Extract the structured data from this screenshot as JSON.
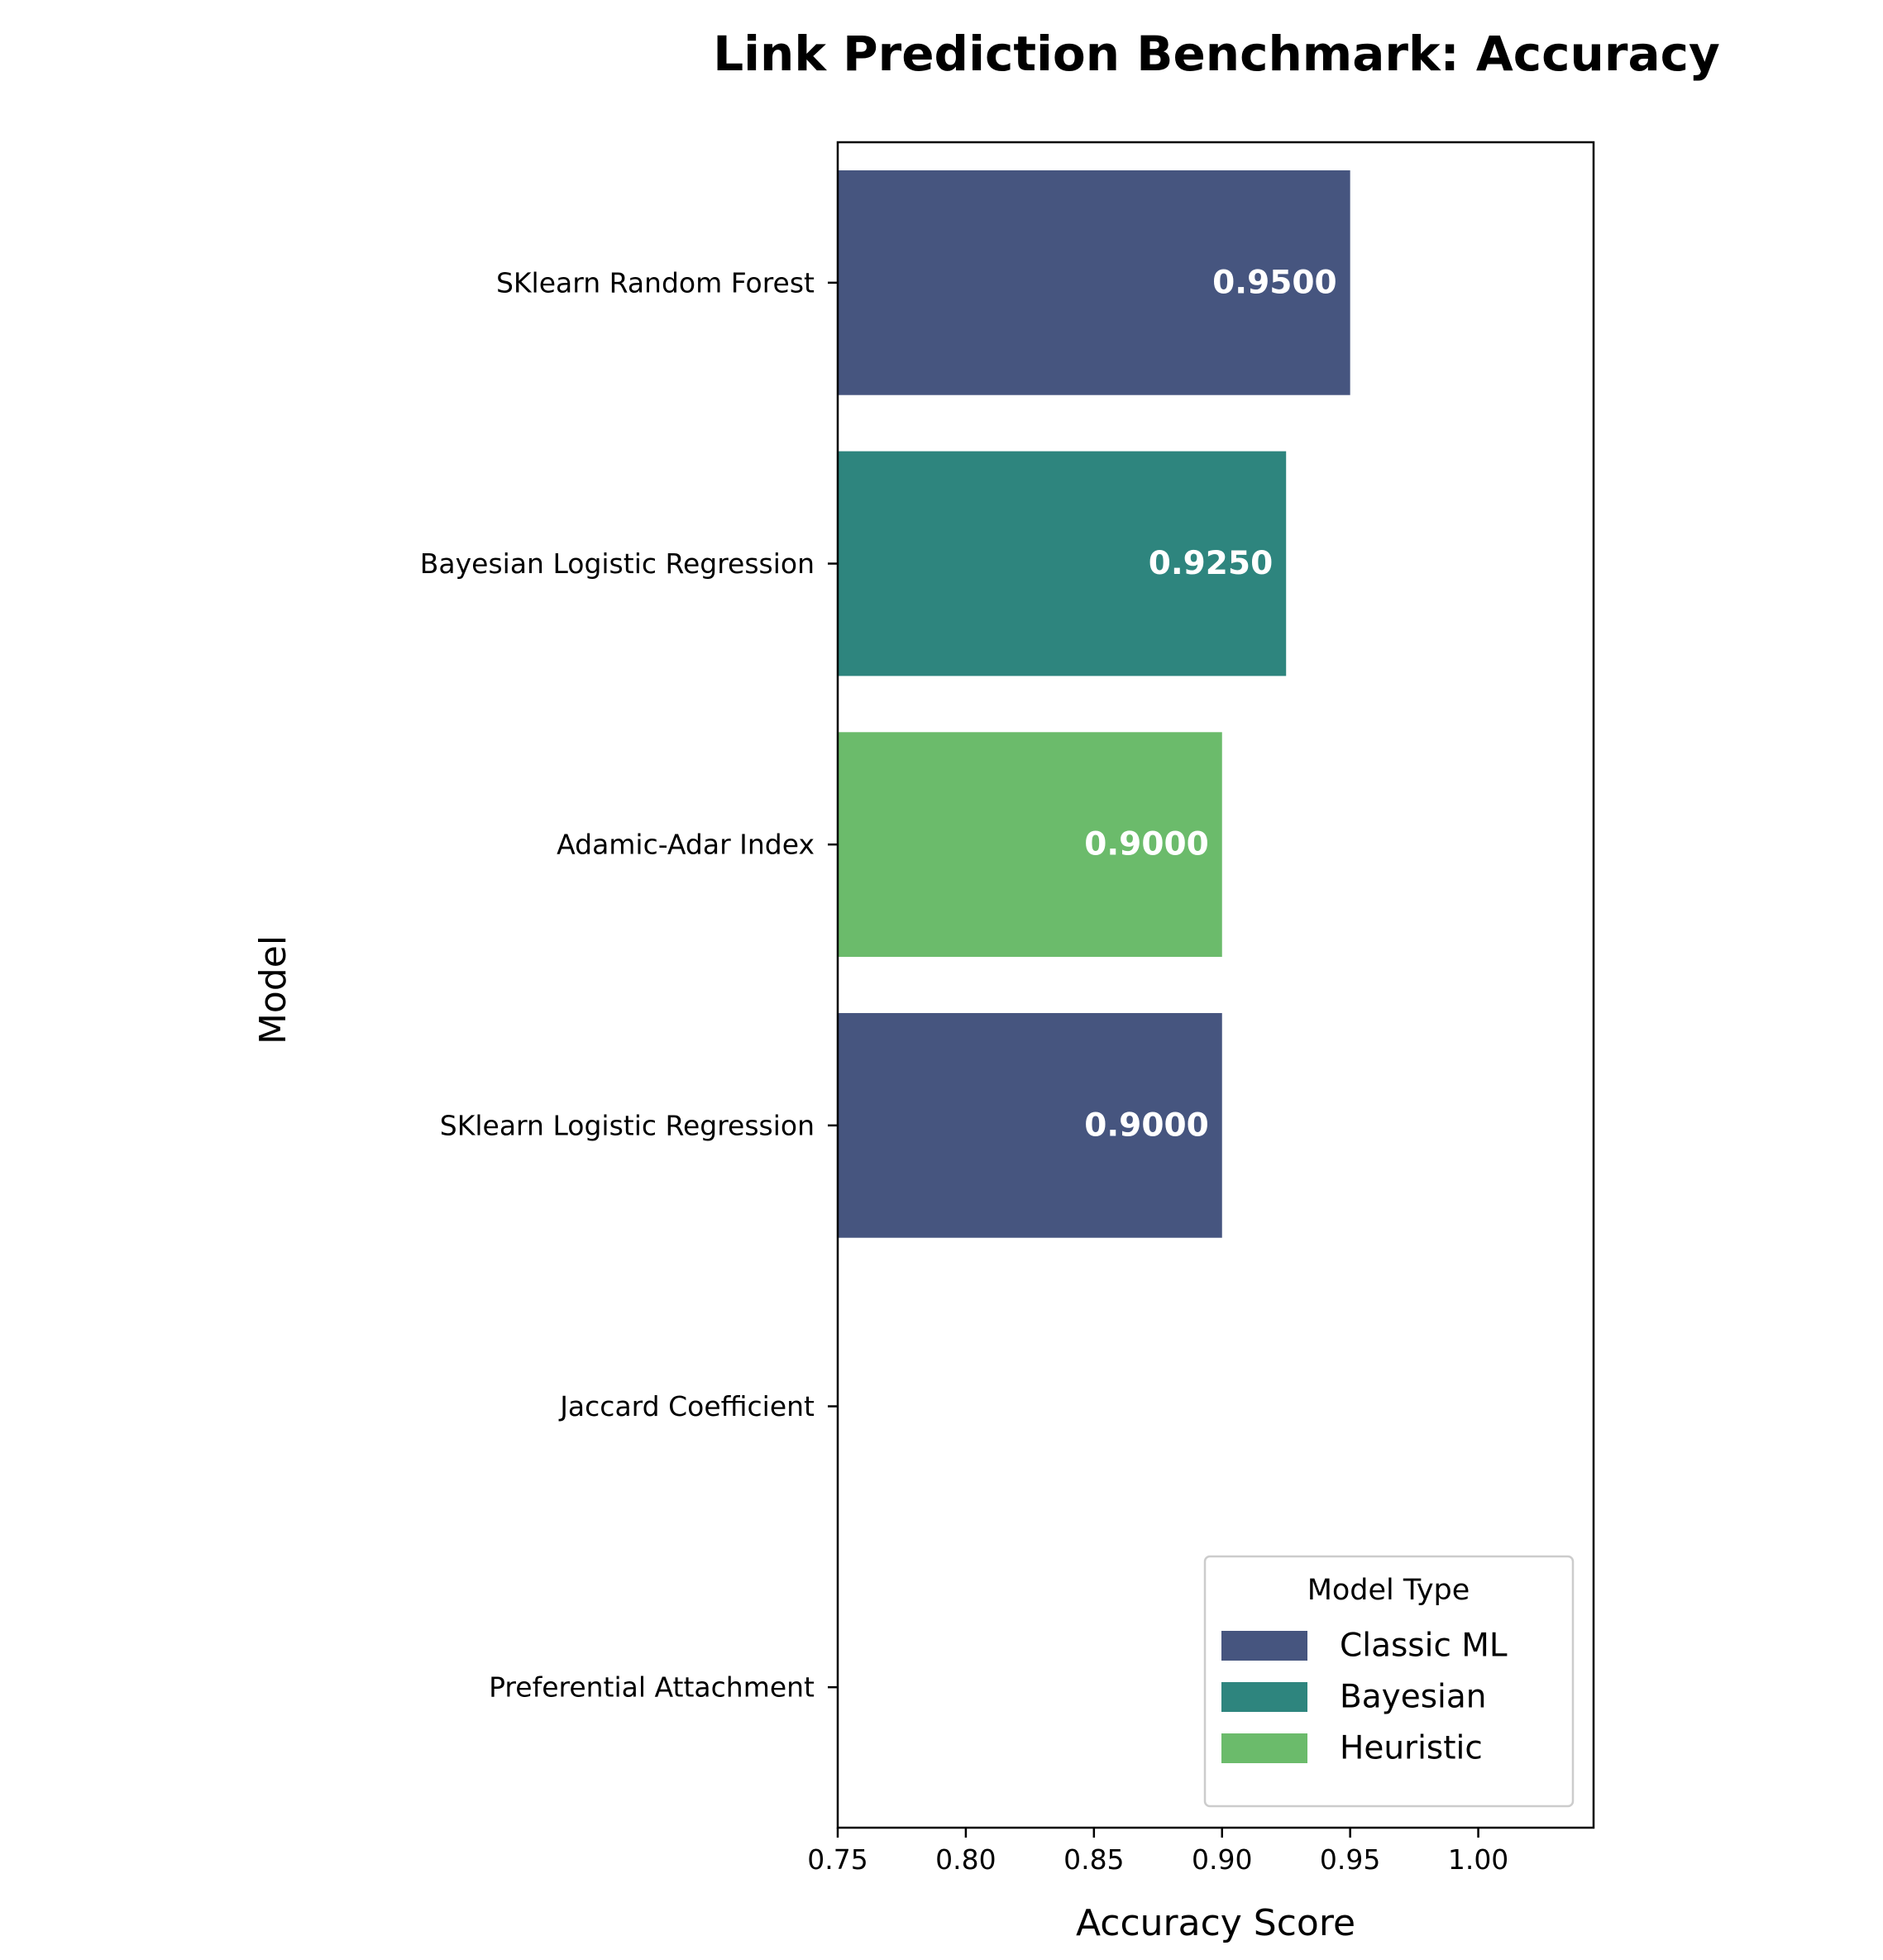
{
  "chart_data": {
    "type": "bar",
    "orientation": "horizontal",
    "title": "Link Prediction Benchmark: Accuracy",
    "xlabel": "Accuracy Score",
    "ylabel": "Model",
    "xlim": [
      0.75,
      1.045
    ],
    "xticks": [
      "0.75",
      "0.80",
      "0.85",
      "0.90",
      "0.95",
      "1.00"
    ],
    "grid": false,
    "legend_title": "Model Type",
    "legend_placement": "lower-right",
    "categories": [
      "SKlearn Random Forest",
      "Bayesian Logistic Regression",
      "Adamic-Adar Index",
      "SKlearn Logistic Regression",
      "Jaccard Coefficient",
      "Preferential Attachment"
    ],
    "bars": [
      {
        "category": "SKlearn Random Forest",
        "value": 0.95,
        "label": "0.9500",
        "type": "Classic ML"
      },
      {
        "category": "Bayesian Logistic Regression",
        "value": 0.925,
        "label": "0.9250",
        "type": "Bayesian"
      },
      {
        "category": "Adamic-Adar Index",
        "value": 0.9,
        "label": "0.9000",
        "type": "Heuristic"
      },
      {
        "category": "SKlearn Logistic Regression",
        "value": 0.9,
        "label": "0.9000",
        "type": "Classic ML"
      },
      {
        "category": "Jaccard Coefficient",
        "value": null,
        "label": "",
        "type": "Heuristic"
      },
      {
        "category": "Preferential Attachment",
        "value": null,
        "label": "",
        "type": "Heuristic"
      }
    ],
    "legend": [
      {
        "name": "Classic ML",
        "color": "#46557f"
      },
      {
        "name": "Bayesian",
        "color": "#2e857e"
      },
      {
        "name": "Heuristic",
        "color": "#6bbb6b"
      }
    ]
  }
}
